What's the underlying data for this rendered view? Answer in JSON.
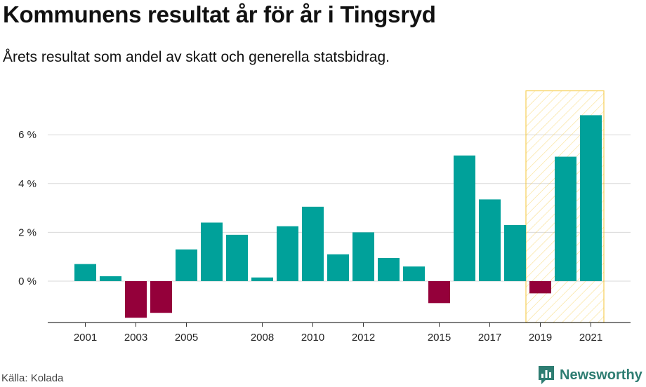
{
  "header": {
    "title": "Kommunens resultat år för år i Tingsryd",
    "subtitle": "Årets resultat som andel av skatt och generella statsbidrag."
  },
  "footer": {
    "source": "Källa: Kolada",
    "brand": "Newsworthy",
    "brand_icon": "newsworthy-logo-icon"
  },
  "colors": {
    "positive": "#00a19a",
    "negative": "#94003a",
    "highlight_stroke": "#f4c430",
    "grid": "#d9d9d9"
  },
  "chart_data": {
    "type": "bar",
    "title": "Kommunens resultat år för år i Tingsryd",
    "subtitle": "Årets resultat som andel av skatt och generella statsbidrag.",
    "categories": [
      "2001",
      "2002",
      "2003",
      "2004",
      "2005",
      "2006",
      "2007",
      "2008",
      "2009",
      "2010",
      "2011",
      "2012",
      "2013",
      "2014",
      "2015",
      "2016",
      "2017",
      "2018",
      "2019",
      "2020",
      "2021"
    ],
    "values": [
      0.7,
      0.2,
      -1.5,
      -1.3,
      1.3,
      2.4,
      1.9,
      0.15,
      2.25,
      3.05,
      1.1,
      2.0,
      0.95,
      0.6,
      -0.9,
      5.15,
      3.35,
      2.3,
      -0.5,
      5.1,
      6.8
    ],
    "x_tick_labels": [
      "2001",
      "2003",
      "2005",
      "2008",
      "2010",
      "2012",
      "2015",
      "2017",
      "2019",
      "2021"
    ],
    "y_ticks": [
      0,
      2,
      4,
      6
    ],
    "y_tick_labels": [
      "0 %",
      "2 %",
      "4 %",
      "6 %"
    ],
    "ylim": [
      -1.7,
      7.8
    ],
    "highlight_range": [
      "2019",
      "2021"
    ],
    "grid": true,
    "xlabel": "",
    "ylabel": ""
  }
}
